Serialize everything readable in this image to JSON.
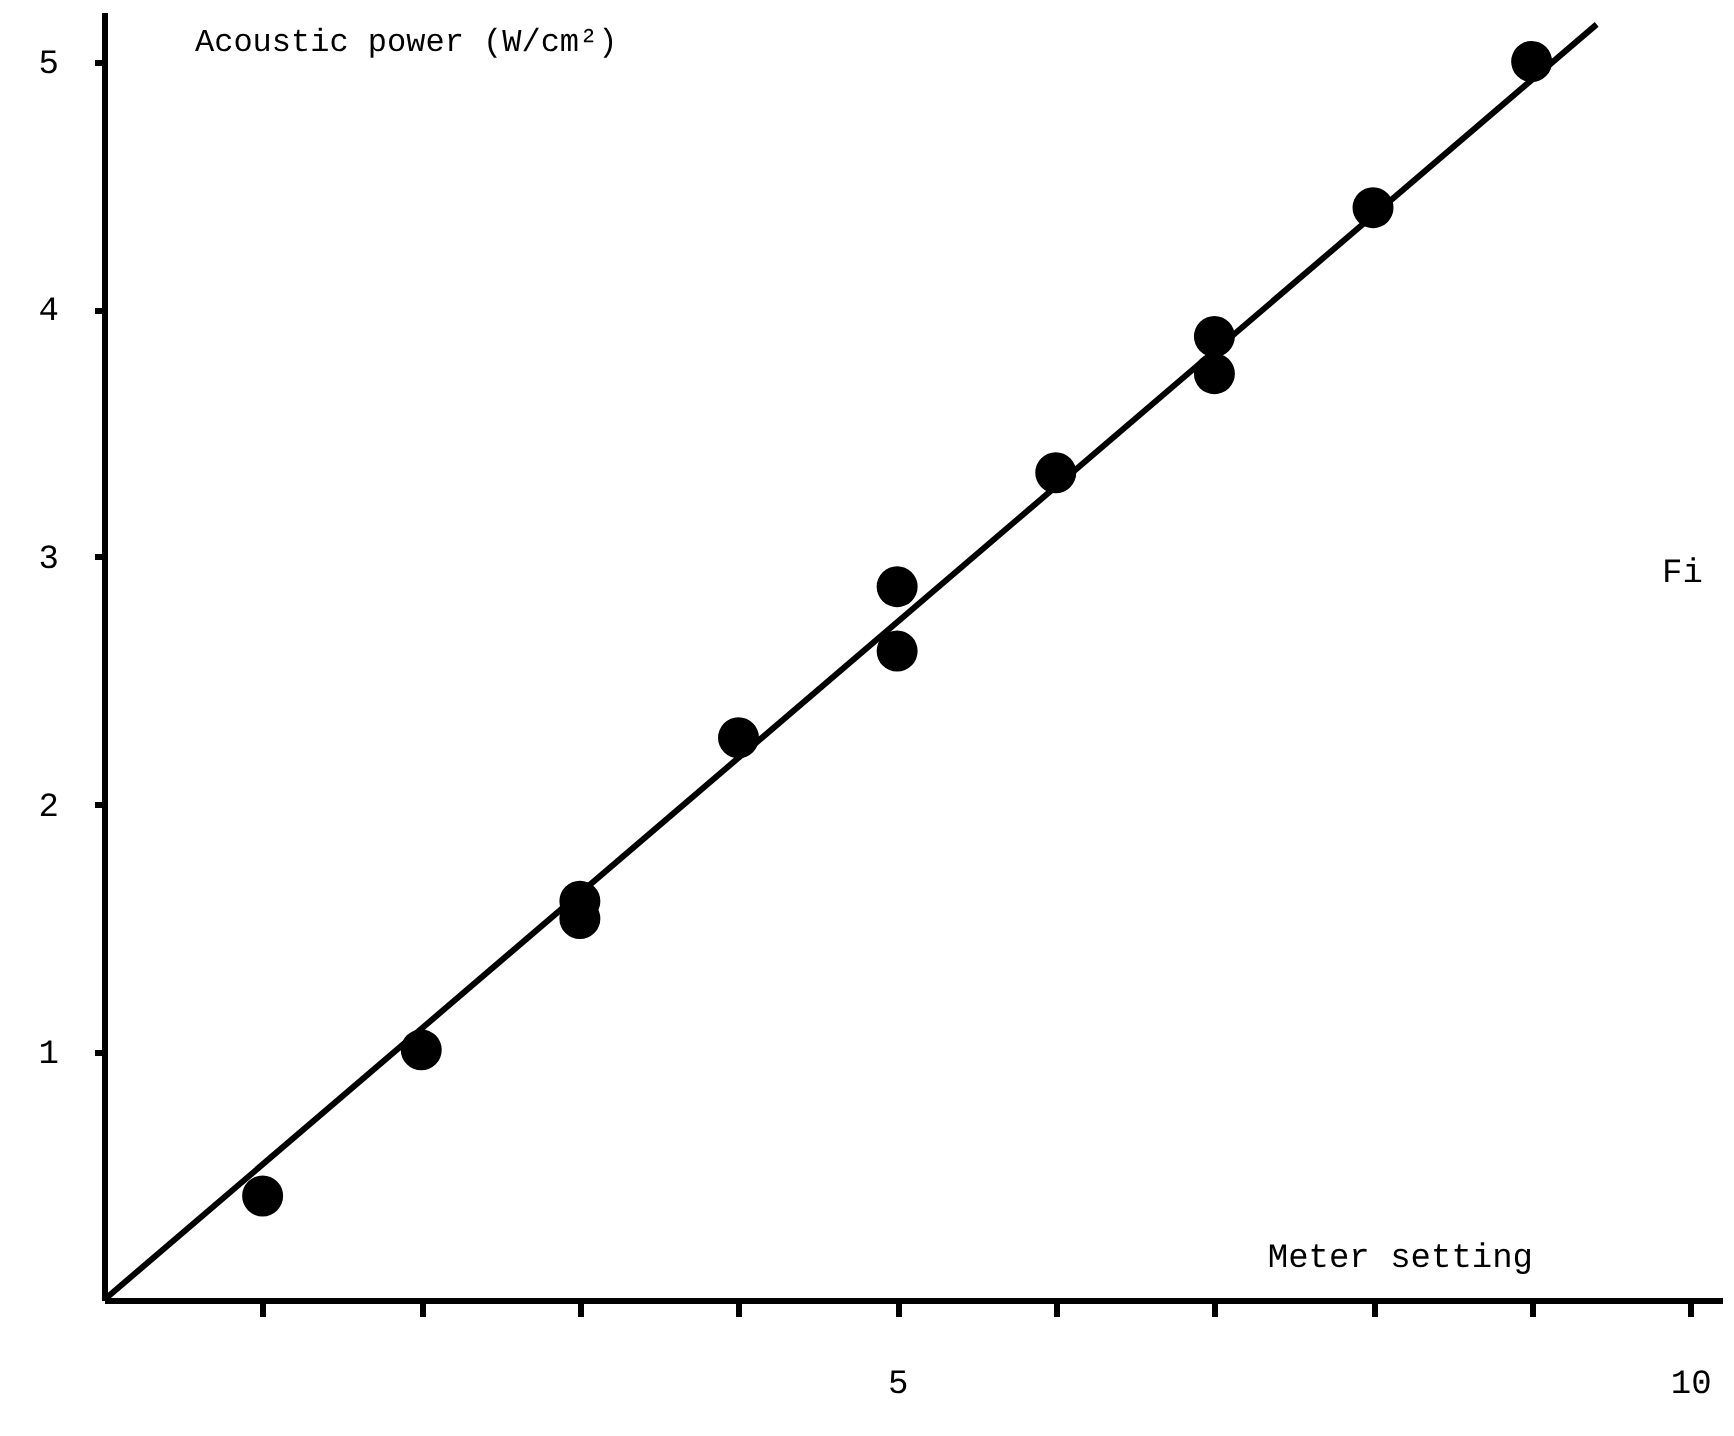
{
  "chart_data": {
    "type": "scatter",
    "xlabel": "Meter setting",
    "ylabel": "Acoustic power (W/cm²)",
    "annotations": [
      "Fi"
    ],
    "xlim": [
      0,
      10.2
    ],
    "ylim": [
      0,
      5.2
    ],
    "xticks": [
      {
        "value": 1,
        "label": null
      },
      {
        "value": 2,
        "label": null
      },
      {
        "value": 3,
        "label": null
      },
      {
        "value": 4,
        "label": null
      },
      5,
      {
        "value": 6,
        "label": null
      },
      {
        "value": 7,
        "label": null
      },
      {
        "value": 8,
        "label": null
      },
      {
        "value": 9,
        "label": null
      },
      10
    ],
    "yticks": [
      1,
      2,
      3,
      4,
      5
    ],
    "grid": false,
    "series": [
      {
        "color": "#000000",
        "marker": "circle",
        "x": [
          1,
          2,
          3,
          3,
          4,
          5,
          5,
          6,
          7,
          7,
          8,
          9
        ],
        "values": [
          0.42,
          1.01,
          1.61,
          1.54,
          2.27,
          2.88,
          2.62,
          3.34,
          3.89,
          3.74,
          4.41,
          5.0
        ]
      },
      {
        "type": "line",
        "color": "#000000",
        "line_style": "solid",
        "x": [
          0,
          9.41
        ],
        "values": [
          0,
          5.15
        ]
      }
    ]
  }
}
